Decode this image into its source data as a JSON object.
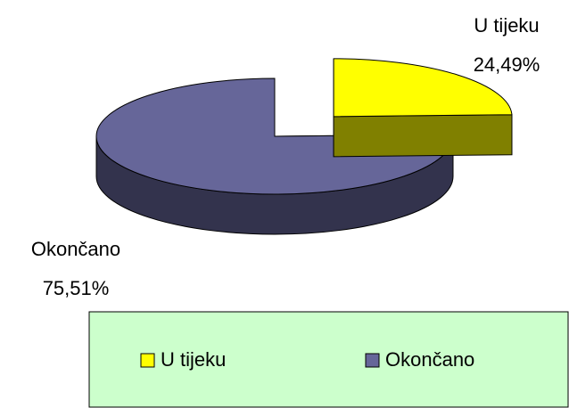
{
  "chart_data": {
    "type": "pie",
    "categories": [
      "U tijeku",
      "Okončano"
    ],
    "values": [
      24.49,
      75.51
    ],
    "value_labels": [
      "24,49%",
      "75,51%"
    ],
    "colors": [
      "#ffff00",
      "#666699"
    ],
    "legend": "bottom"
  }
}
